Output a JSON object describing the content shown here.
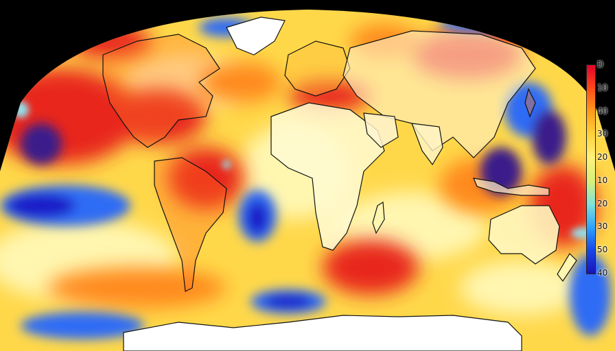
{
  "map": {
    "projection": "robinson",
    "palette": {
      "deep_blue": "#1a1fc8",
      "blue": "#2e6cf5",
      "cyan": "#8fe2f0",
      "pale_yellow": "#fff6b0",
      "yellow": "#ffd84a",
      "orange": "#ff8a1e",
      "red": "#e8261c",
      "dark_red": "#9a0f2a",
      "purple": "#3a1f8a",
      "land_outline": "#111111",
      "ice": "#ffffff"
    }
  },
  "legend": {
    "gradient": [
      "#e3002a",
      "#ff4a1a",
      "#ff9c1a",
      "#ffd23a",
      "#fff27a",
      "#d8f07a",
      "#7fe3d8",
      "#2fa3ff",
      "#1747e8",
      "#1a12b8"
    ],
    "ticks": [
      "D",
      "10",
      "40",
      "30",
      "20",
      "10",
      "20",
      "30",
      "50",
      "40"
    ]
  }
}
